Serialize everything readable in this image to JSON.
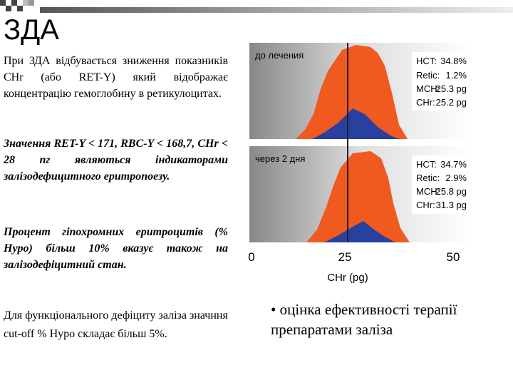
{
  "title": "ЗДА",
  "paragraphs": [
    "При ЗДА відбувається зниження показників CHr (або RET-Y) який відображає концентрацію гемоглобину в ретикулоцитах.",
    "Значення RET-Y < 171, RBC-Y < 168,7, CHr < 28 пг являються індикаторами залізодефицитного еритропоезу.",
    "Процент гіпохромних еритроцитів (% Hypo) більш 10% вказує також на залізодефіцитний стан.",
    "Для функціонального дефіциту заліза значння cut-off % Hypo складає більш 5%."
  ],
  "figure": {
    "panels": [
      {
        "label": "до лечения",
        "stats": [
          {
            "name": "HCT:",
            "value": "34.8%"
          },
          {
            "name": "Retic:",
            "value": "1.2%"
          },
          {
            "name": "MCH:",
            "value": "25.3 pg"
          },
          {
            "name": "CHr:",
            "value": "25.2 pg"
          }
        ]
      },
      {
        "label": "через 2 дня",
        "stats": [
          {
            "name": "HCT:",
            "value": "34.7%"
          },
          {
            "name": "Retic:",
            "value": "2.9%"
          },
          {
            "name": "MCH:",
            "value": "25.8 pg"
          },
          {
            "name": "CHr:",
            "value": "31.3 pg"
          }
        ]
      }
    ],
    "x_ticks": [
      "0",
      "25",
      "50"
    ],
    "x_label": "CHr (pg)"
  },
  "bullet": "• оцінка ефективності терапії препаратами заліза"
}
